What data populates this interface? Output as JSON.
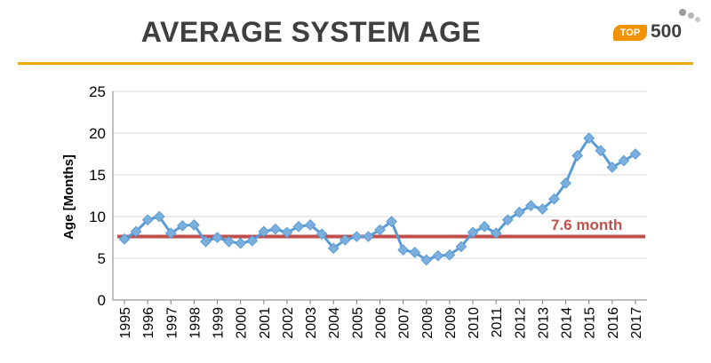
{
  "header": {
    "title": "AVERAGE SYSTEM AGE",
    "logo": {
      "badge": "TOP",
      "number": "500"
    }
  },
  "colors": {
    "accent_rule": "#f5a700",
    "series_line": "#5b9bd5",
    "series_marker": "#7bb0de",
    "average_line": "#c0504d",
    "grid": "#d9d9d9"
  },
  "chart_data": {
    "type": "line",
    "title": "",
    "xlabel": "",
    "ylabel": "Age [Months]",
    "ylim": [
      0,
      25
    ],
    "yticks": [
      0,
      5,
      10,
      15,
      20,
      25
    ],
    "xlim": [
      1995,
      2017
    ],
    "xticks": [
      "1995",
      "1996",
      "1997",
      "1998",
      "1999",
      "2000",
      "2001",
      "2002",
      "2003",
      "2004",
      "2005",
      "2006",
      "2007",
      "2008",
      "2009",
      "2010",
      "2011",
      "2012",
      "2013",
      "2014",
      "2015",
      "2016",
      "2017"
    ],
    "grid": true,
    "series": [
      {
        "x": [
          1995.0,
          1995.5,
          1996.0,
          1996.5,
          1997.0,
          1997.5,
          1998.0,
          1998.5,
          1999.0,
          1999.5,
          2000.0,
          2000.5,
          2001.0,
          2001.5,
          2002.0,
          2002.5,
          2003.0,
          2003.5,
          2004.0,
          2004.5,
          2005.0,
          2005.5,
          2006.0,
          2006.5,
          2007.0,
          2007.5,
          2008.0,
          2008.5,
          2009.0,
          2009.5,
          2010.0,
          2010.5,
          2011.0,
          2011.5,
          2012.0,
          2012.5,
          2013.0,
          2013.5,
          2014.0,
          2014.5,
          2015.0,
          2015.5,
          2016.0,
          2016.5,
          2017.0
        ],
        "values": [
          7.3,
          8.2,
          9.6,
          10.0,
          8.0,
          8.9,
          9.0,
          7.0,
          7.5,
          7.0,
          6.8,
          7.1,
          8.2,
          8.5,
          8.1,
          8.8,
          9.0,
          7.9,
          6.2,
          7.2,
          7.6,
          7.6,
          8.4,
          9.4,
          6.0,
          5.7,
          4.8,
          5.3,
          5.4,
          6.4,
          8.1,
          8.8,
          8.0,
          9.6,
          10.5,
          11.3,
          10.9,
          12.1,
          14.0,
          17.3,
          19.4,
          17.9,
          15.9,
          16.7,
          17.5
        ]
      }
    ],
    "reference_line": {
      "value": 7.6,
      "label": "7.6 month"
    }
  }
}
